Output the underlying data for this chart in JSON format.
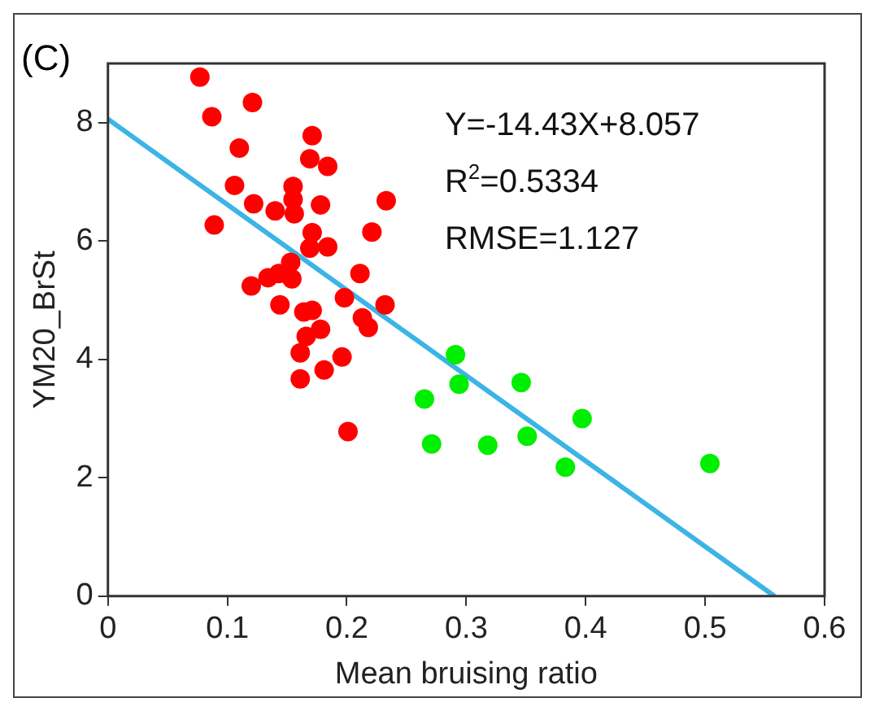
{
  "chart_data": {
    "type": "scatter",
    "title": "(C)",
    "xlabel": "Mean bruising ratio",
    "ylabel": "YM20_BrSt",
    "annotations": [
      "Y=-14.43X+8.057",
      "R$^{2}$=0.5334",
      "RMSE=1.127"
    ],
    "xlim": [
      0,
      0.6
    ],
    "xticks": [
      0,
      0.1,
      0.2,
      0.3,
      0.4,
      0.5,
      0.6
    ],
    "ylim": [
      0,
      9
    ],
    "yticks": [
      0,
      2,
      4,
      6,
      8
    ],
    "grid": false,
    "legend": false,
    "marker": "circle",
    "series": [
      {
        "color": "#ff0000",
        "x": [
          0.077,
          0.087,
          0.121,
          0.11,
          0.106,
          0.122,
          0.089,
          0.14,
          0.155,
          0.155,
          0.156,
          0.171,
          0.169,
          0.184,
          0.178,
          0.233,
          0.171,
          0.184,
          0.169,
          0.221,
          0.211,
          0.12,
          0.134,
          0.143,
          0.153,
          0.154,
          0.144,
          0.164,
          0.171,
          0.198,
          0.232,
          0.213,
          0.218,
          0.178,
          0.166,
          0.161,
          0.196,
          0.181,
          0.161,
          0.201
        ],
        "values": [
          8.77,
          8.1,
          8.34,
          7.57,
          6.94,
          6.63,
          6.27,
          6.51,
          6.92,
          6.7,
          6.46,
          7.78,
          7.39,
          7.26,
          6.61,
          6.68,
          6.14,
          5.9,
          5.88,
          6.15,
          5.45,
          5.24,
          5.38,
          5.45,
          5.64,
          5.36,
          4.92,
          4.8,
          4.83,
          5.04,
          4.92,
          4.7,
          4.54,
          4.51,
          4.39,
          4.11,
          4.04,
          3.82,
          3.67,
          2.78
        ]
      },
      {
        "color": "#00ee00",
        "x": [
          0.291,
          0.294,
          0.265,
          0.346,
          0.397,
          0.271,
          0.318,
          0.351,
          0.383,
          0.504
        ],
        "values": [
          4.08,
          3.58,
          3.33,
          3.61,
          3.0,
          2.57,
          2.55,
          2.7,
          2.18,
          2.24
        ]
      },
      {
        "type": "line",
        "marker": "none",
        "color": "#3cb4e6",
        "x": [
          0,
          0.558
        ],
        "values": [
          8.06,
          0
        ]
      }
    ]
  }
}
